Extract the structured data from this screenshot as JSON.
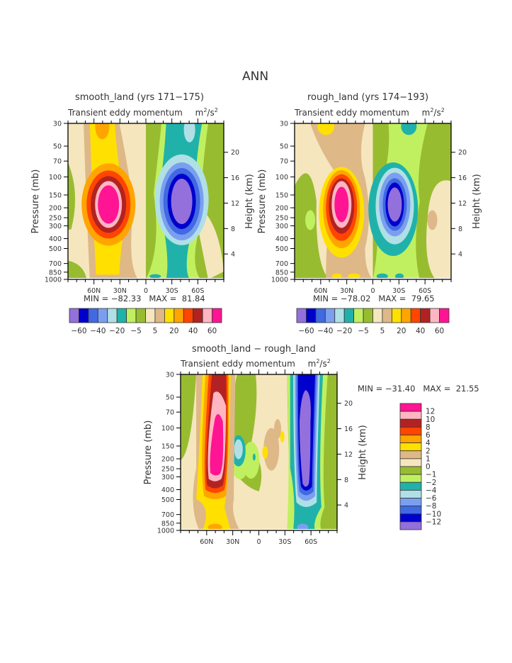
{
  "figure": {
    "title": "ANN",
    "variable": "Transient eddy momentum",
    "units_html": "m<sup>2</sup>/s<sup>2</sup>",
    "units_base": "m",
    "units_sup1": "2",
    "units_mid": "/s",
    "units_sup2": "2"
  },
  "chart_data": [
    {
      "type": "heatmap",
      "title": "smooth_land (yrs 171-175)",
      "title_display": "smooth_land (yrs 171−175)",
      "subtitle": "Transient eddy momentum",
      "units": "m2/s2",
      "xlabel": "",
      "ylabel": "Pressure (mb)",
      "y2label": "Height (km)",
      "x_ticks": [
        "60N",
        "30N",
        "0",
        "30S",
        "60S"
      ],
      "y_ticks": [
        "30",
        "50",
        "70",
        "100",
        "150",
        "200",
        "250",
        "300",
        "400",
        "500",
        "700",
        "850",
        "1000"
      ],
      "y2_ticks": [
        "20",
        "16",
        "12",
        "8",
        "4"
      ],
      "min_label": "MIN =",
      "min": "−82.33",
      "max_label": "MAX =",
      "max": "81.84",
      "colorbar": {
        "orientation": "horizontal",
        "labels": [
          "−60",
          "−40",
          "−20",
          "−5",
          "5",
          "20",
          "40",
          "60"
        ],
        "colors": [
          "#9370db",
          "#0000cd",
          "#4169e1",
          "#7b9ff0",
          "#b0e0e6",
          "#20b2aa",
          "#c0f060",
          "#98bc30",
          "#f5e6be",
          "#deb887",
          "#ffe000",
          "#ffa500",
          "#ff4500",
          "#b22222",
          "#ffb6c1",
          "#ff1493"
        ]
      },
      "features": [
        {
          "kind": "positive-max",
          "lat": "35N",
          "pressure_mb": 220,
          "value": 81.84
        },
        {
          "kind": "negative-min",
          "lat": "35S",
          "pressure_mb": 220,
          "value": -82.33
        }
      ]
    },
    {
      "type": "heatmap",
      "title": "rough_land (yrs 174-193)",
      "title_display": "rough_land (yrs 174−193)",
      "subtitle": "Transient eddy momentum",
      "units": "m2/s2",
      "xlabel": "",
      "ylabel": "Pressure (mb)",
      "y2label": "Height (km)",
      "x_ticks": [
        "60N",
        "30N",
        "0",
        "30S",
        "60S"
      ],
      "y_ticks": [
        "30",
        "50",
        "70",
        "100",
        "150",
        "200",
        "250",
        "300",
        "400",
        "500",
        "700",
        "850",
        "1000"
      ],
      "y2_ticks": [
        "20",
        "16",
        "12",
        "8",
        "4"
      ],
      "min_label": "MIN =",
      "min": "−78.02",
      "max_label": "MAX =",
      "max": "79.65",
      "colorbar": {
        "orientation": "horizontal",
        "labels": [
          "−60",
          "−40",
          "−20",
          "−5",
          "5",
          "20",
          "40",
          "60"
        ],
        "colors": [
          "#9370db",
          "#0000cd",
          "#4169e1",
          "#7b9ff0",
          "#b0e0e6",
          "#20b2aa",
          "#c0f060",
          "#98bc30",
          "#f5e6be",
          "#deb887",
          "#ffe000",
          "#ffa500",
          "#ff4500",
          "#b22222",
          "#ffb6c1",
          "#ff1493"
        ]
      },
      "features": [
        {
          "kind": "positive-max",
          "lat": "30N",
          "pressure_mb": 220,
          "value": 79.65
        },
        {
          "kind": "negative-min",
          "lat": "32S",
          "pressure_mb": 220,
          "value": -78.02
        }
      ]
    },
    {
      "type": "heatmap",
      "title": "smooth_land - rough_land",
      "title_display": "smooth_land − rough_land",
      "subtitle": "Transient eddy momentum",
      "units": "m2/s2",
      "xlabel": "",
      "ylabel": "Pressure (mb)",
      "y2label": "Height (km)",
      "x_ticks": [
        "60N",
        "30N",
        "0",
        "30S",
        "60S"
      ],
      "y_ticks": [
        "30",
        "50",
        "70",
        "100",
        "150",
        "200",
        "250",
        "300",
        "400",
        "500",
        "700",
        "850",
        "1000"
      ],
      "y2_ticks": [
        "20",
        "16",
        "12",
        "8",
        "4"
      ],
      "min_label": "MIN =",
      "min": "−31.40",
      "max_label": "MAX =",
      "max": "21.55",
      "colorbar": {
        "orientation": "vertical",
        "labels": [
          "12",
          "10",
          "8",
          "6",
          "4",
          "2",
          "1",
          "0",
          "−1",
          "−2",
          "−4",
          "−6",
          "−8",
          "−10",
          "−12"
        ],
        "colors": [
          "#ff1493",
          "#ffb6c1",
          "#b22222",
          "#ff4500",
          "#ffa500",
          "#ffe000",
          "#deb887",
          "#f5e6be",
          "#98bc30",
          "#c0f060",
          "#20b2aa",
          "#b0e0e6",
          "#7b9ff0",
          "#4169e1",
          "#0000cd",
          "#9370db"
        ]
      },
      "features": [
        {
          "kind": "positive-max",
          "lat": "52N",
          "pressure_mb": 200,
          "value": 21.55
        },
        {
          "kind": "negative-min",
          "lat": "55S",
          "pressure_mb": 200,
          "value": -31.4
        }
      ]
    }
  ]
}
